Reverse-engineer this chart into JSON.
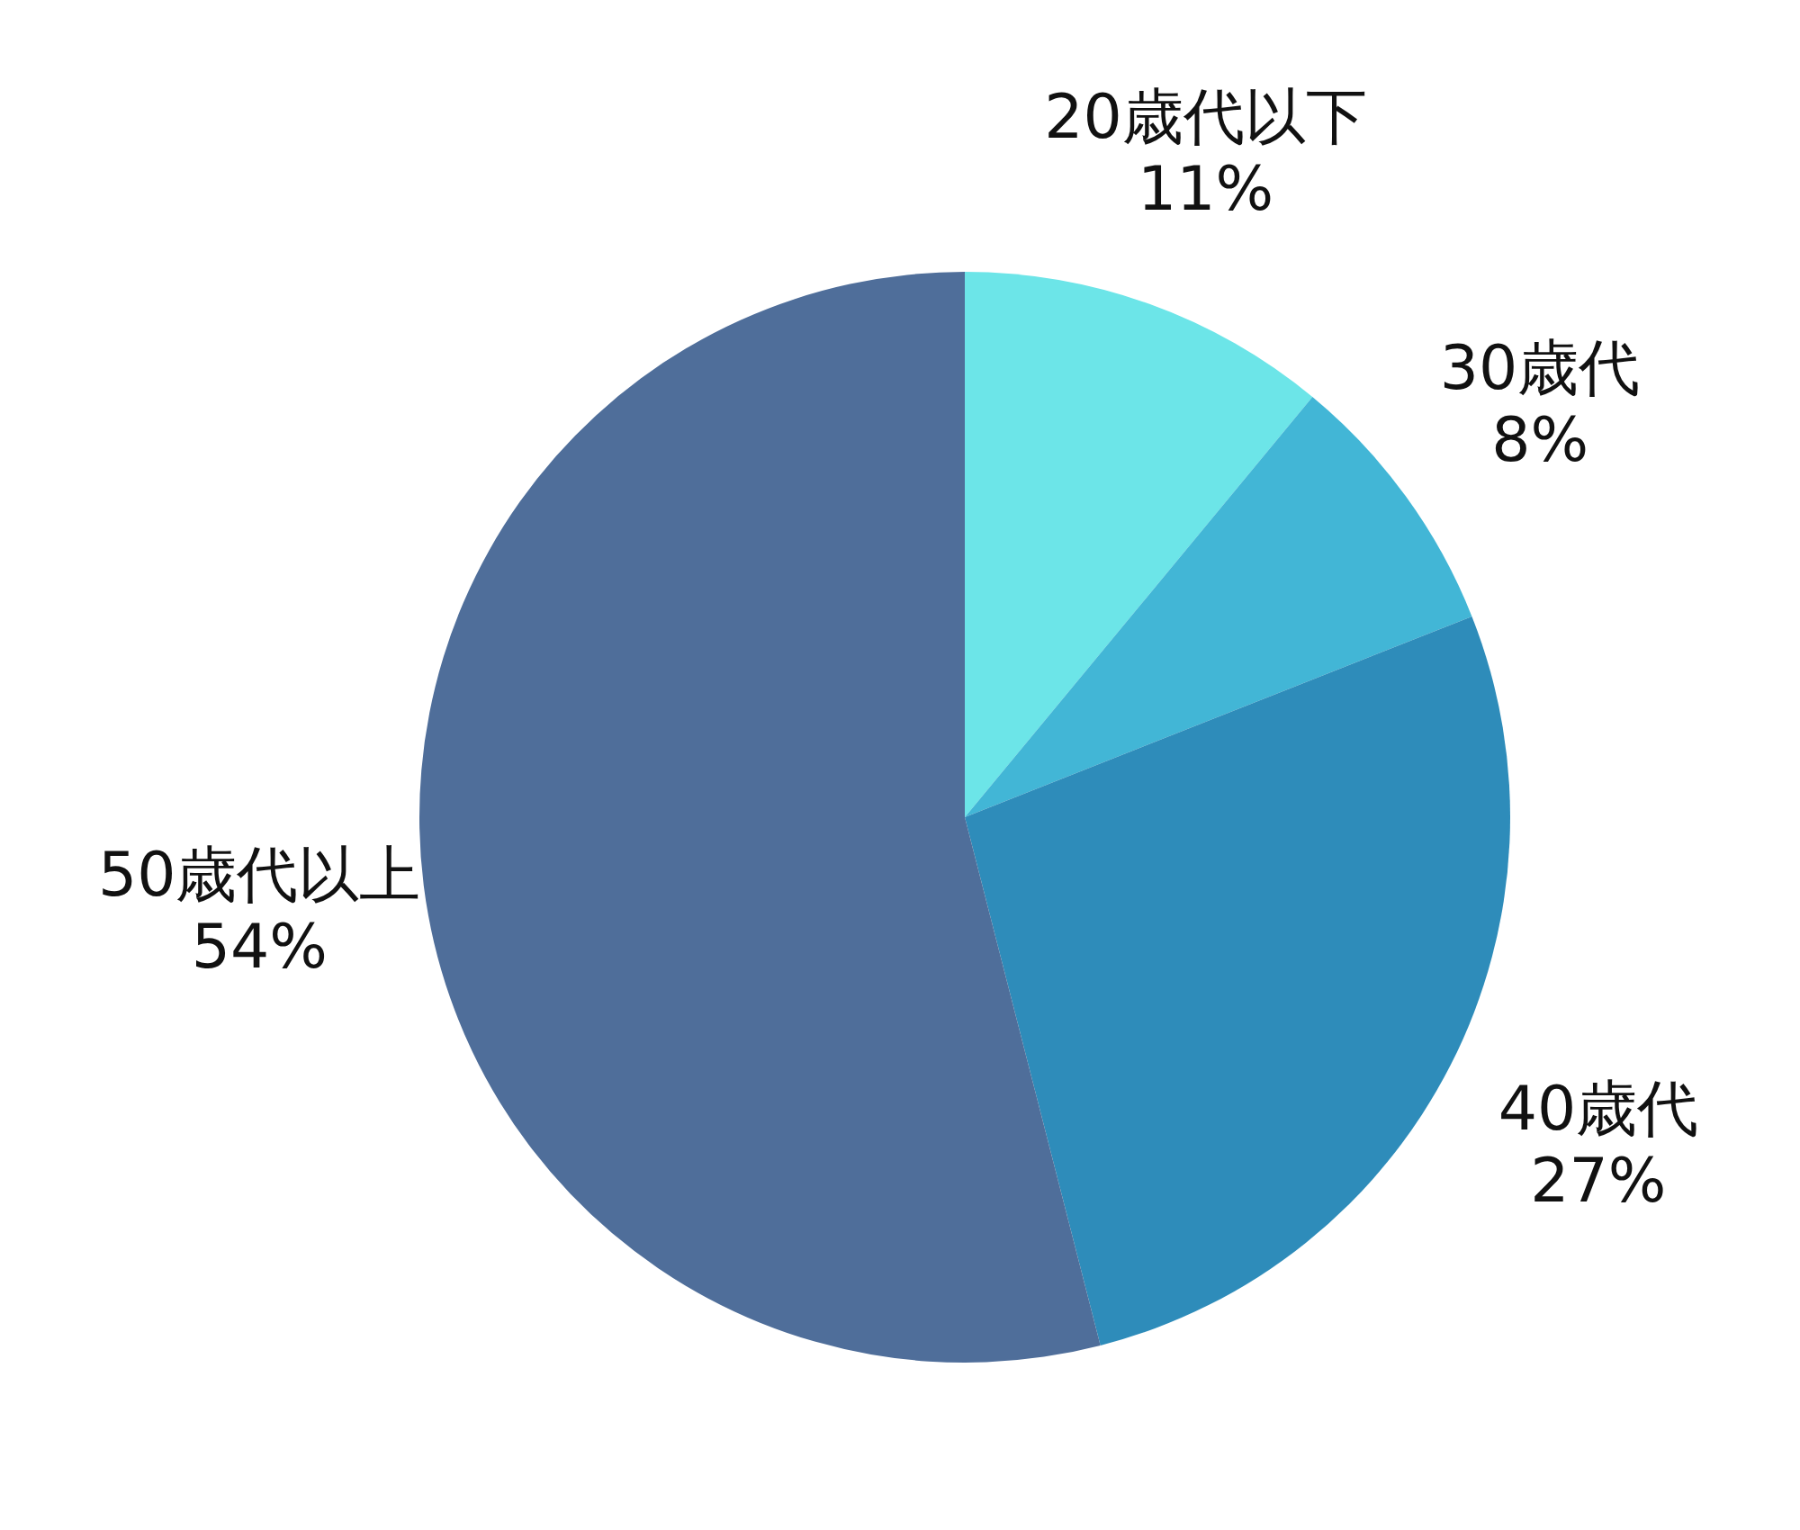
{
  "chart_data": {
    "type": "pie",
    "categories": [
      "20歳代以下",
      "30歳代",
      "40歳代",
      "50歳代以上"
    ],
    "values": [
      11,
      8,
      27,
      54
    ],
    "value_labels": [
      "11%",
      "8%",
      "27%",
      "54%"
    ],
    "colors": [
      "#6ce5e8",
      "#42b6d6",
      "#2e8cba",
      "#4f6e9a"
    ]
  }
}
